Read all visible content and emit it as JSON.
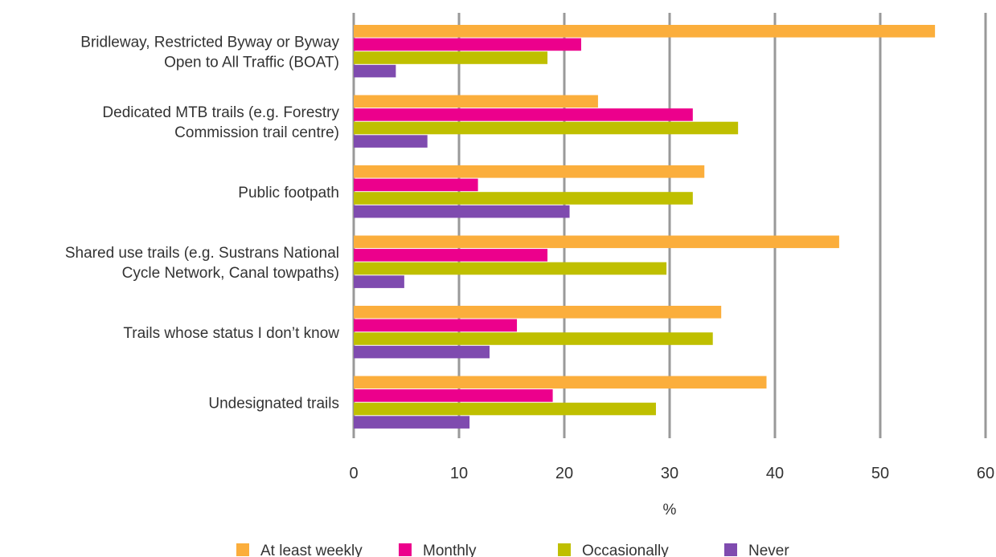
{
  "chart_data": {
    "type": "bar",
    "orientation": "horizontal",
    "categories": [
      [
        "Bridleway, Restricted Byway or Byway",
        "Open to All Traffic (BOAT)"
      ],
      [
        "Dedicated MTB trails (e.g. Forestry",
        "Commission trail centre)"
      ],
      [
        "Public footpath"
      ],
      [
        "Shared use trails (e.g. Sustrans National",
        "Cycle Network, Canal towpaths)"
      ],
      [
        "Trails whose status I don’t know"
      ],
      [
        "Undesignated trails"
      ]
    ],
    "series": [
      {
        "name": "At least weekly",
        "color": "#FBAE3C",
        "values": [
          55.2,
          23.2,
          33.3,
          46.1,
          34.9,
          39.2
        ]
      },
      {
        "name": "Monthly",
        "color": "#EC008C",
        "values": [
          21.6,
          32.2,
          11.8,
          18.4,
          15.5,
          18.9
        ]
      },
      {
        "name": "Occasionally",
        "color": "#BFBF00",
        "values": [
          18.4,
          36.5,
          32.2,
          29.7,
          34.1,
          28.7
        ]
      },
      {
        "name": "Never",
        "color": "#7F4BAF",
        "values": [
          4.0,
          7.0,
          20.5,
          4.8,
          12.9,
          11.0
        ]
      }
    ],
    "xlabel": "%",
    "ylabel": "",
    "title": "",
    "xlim": [
      0,
      60
    ],
    "xticks": [
      "0",
      "10",
      "20",
      "30",
      "40",
      "50",
      "60"
    ],
    "grid": true,
    "legend": "bottom-center",
    "gridline_color": "#999999"
  }
}
